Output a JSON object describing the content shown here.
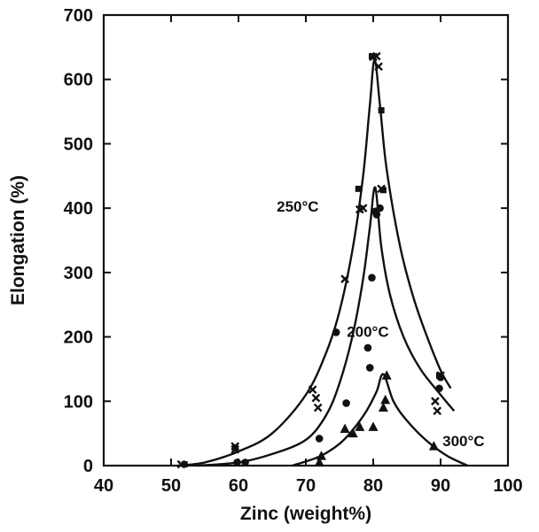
{
  "chart_data": {
    "type": "scatter",
    "xlabel": "Zinc (weight%)",
    "ylabel": "Elongation (%)",
    "xlim": [
      40,
      100
    ],
    "ylim": [
      0,
      700
    ],
    "x_ticks": [
      "40",
      "50",
      "60",
      "70",
      "80",
      "90",
      "100"
    ],
    "y_ticks": [
      "0",
      "100",
      "200",
      "300",
      "400",
      "500",
      "600",
      "700"
    ],
    "grid": false,
    "legend": "none",
    "curve_labels": [
      {
        "text": "250°C",
        "x": 68.8,
        "y": 395
      },
      {
        "text": "200°C",
        "x": 79.2,
        "y": 200
      },
      {
        "text": "300°C",
        "x": 93.4,
        "y": 30
      }
    ],
    "series": [
      {
        "marker": "x",
        "points": [
          [
            51.5,
            2
          ],
          [
            59.5,
            25
          ],
          [
            59.5,
            30
          ],
          [
            71,
            118
          ],
          [
            71.5,
            105
          ],
          [
            71.8,
            90
          ],
          [
            75.8,
            290
          ],
          [
            78,
            398
          ],
          [
            78.5,
            400
          ],
          [
            80,
            635
          ],
          [
            80.5,
            636
          ],
          [
            80.8,
            620
          ],
          [
            81.2,
            430
          ],
          [
            89.2,
            100
          ],
          [
            89.5,
            85
          ],
          [
            90,
            140
          ]
        ],
        "fit": [
          [
            51,
            0
          ],
          [
            55,
            5
          ],
          [
            60,
            22
          ],
          [
            65,
            50
          ],
          [
            70,
            110
          ],
          [
            73,
            175
          ],
          [
            75,
            240
          ],
          [
            77,
            340
          ],
          [
            78.5,
            450
          ],
          [
            79.5,
            560
          ],
          [
            80.2,
            630
          ],
          [
            81,
            560
          ],
          [
            82,
            460
          ],
          [
            84,
            340
          ],
          [
            86,
            260
          ],
          [
            88,
            200
          ],
          [
            90,
            148
          ],
          [
            91.5,
            120
          ]
        ]
      },
      {
        "marker": "square",
        "points": [
          [
            52,
            2
          ],
          [
            59.5,
            28
          ],
          [
            77.8,
            430
          ],
          [
            79.8,
            636
          ],
          [
            81.2,
            552
          ],
          [
            81.5,
            428
          ],
          [
            89.8,
            140
          ]
        ],
        "fit": []
      },
      {
        "marker": "circle",
        "points": [
          [
            59.8,
            5
          ],
          [
            61,
            5
          ],
          [
            72,
            42
          ],
          [
            74.5,
            207
          ],
          [
            76,
            97
          ],
          [
            79.2,
            183
          ],
          [
            79.5,
            152
          ],
          [
            79.8,
            292
          ],
          [
            80.3,
            395
          ],
          [
            80.5,
            390
          ],
          [
            81,
            400
          ],
          [
            89.8,
            120
          ],
          [
            90,
            137
          ]
        ],
        "fit": [
          [
            54,
            0
          ],
          [
            60,
            5
          ],
          [
            65,
            18
          ],
          [
            70,
            40
          ],
          [
            73,
            78
          ],
          [
            75,
            128
          ],
          [
            77,
            205
          ],
          [
            78.5,
            290
          ],
          [
            79.5,
            370
          ],
          [
            80.3,
            432
          ],
          [
            81.2,
            340
          ],
          [
            82.5,
            265
          ],
          [
            84.5,
            200
          ],
          [
            87,
            150
          ],
          [
            90,
            110
          ],
          [
            92,
            85
          ]
        ]
      },
      {
        "marker": "triangle",
        "points": [
          [
            72,
            5
          ],
          [
            72.3,
            15
          ],
          [
            75.8,
            57
          ],
          [
            77,
            50
          ],
          [
            78,
            60
          ],
          [
            80,
            60
          ],
          [
            81.5,
            90
          ],
          [
            81.8,
            102
          ],
          [
            82,
            140
          ],
          [
            89,
            30
          ]
        ],
        "fit": [
          [
            68,
            0
          ],
          [
            72,
            14
          ],
          [
            75,
            34
          ],
          [
            77,
            56
          ],
          [
            79,
            85
          ],
          [
            80.5,
            115
          ],
          [
            81.5,
            142
          ],
          [
            83,
            100
          ],
          [
            85,
            70
          ],
          [
            88,
            38
          ],
          [
            91,
            15
          ],
          [
            94,
            0
          ]
        ]
      }
    ]
  }
}
